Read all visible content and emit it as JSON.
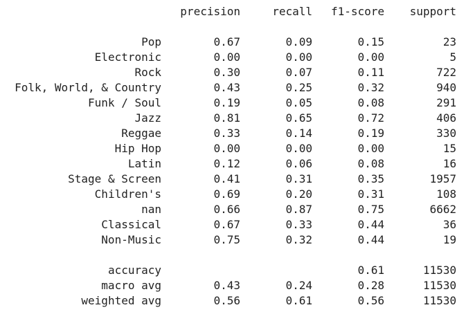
{
  "header": {
    "precision": "precision",
    "recall": "recall",
    "f1": "f1-score",
    "support": "support"
  },
  "classes": [
    {
      "label": "Pop",
      "precision": "0.67",
      "recall": "0.09",
      "f1": "0.15",
      "support": "23"
    },
    {
      "label": "Electronic",
      "precision": "0.00",
      "recall": "0.00",
      "f1": "0.00",
      "support": "5"
    },
    {
      "label": "Rock",
      "precision": "0.30",
      "recall": "0.07",
      "f1": "0.11",
      "support": "722"
    },
    {
      "label": "Folk, World, & Country",
      "precision": "0.43",
      "recall": "0.25",
      "f1": "0.32",
      "support": "940"
    },
    {
      "label": "Funk / Soul",
      "precision": "0.19",
      "recall": "0.05",
      "f1": "0.08",
      "support": "291"
    },
    {
      "label": "Jazz",
      "precision": "0.81",
      "recall": "0.65",
      "f1": "0.72",
      "support": "406"
    },
    {
      "label": "Reggae",
      "precision": "0.33",
      "recall": "0.14",
      "f1": "0.19",
      "support": "330"
    },
    {
      "label": "Hip Hop",
      "precision": "0.00",
      "recall": "0.00",
      "f1": "0.00",
      "support": "15"
    },
    {
      "label": "Latin",
      "precision": "0.12",
      "recall": "0.06",
      "f1": "0.08",
      "support": "16"
    },
    {
      "label": "Stage & Screen",
      "precision": "0.41",
      "recall": "0.31",
      "f1": "0.35",
      "support": "1957"
    },
    {
      "label": "Children's",
      "precision": "0.69",
      "recall": "0.20",
      "f1": "0.31",
      "support": "108"
    },
    {
      "label": "nan",
      "precision": "0.66",
      "recall": "0.87",
      "f1": "0.75",
      "support": "6662"
    },
    {
      "label": "Classical",
      "precision": "0.67",
      "recall": "0.33",
      "f1": "0.44",
      "support": "36"
    },
    {
      "label": "Non-Music",
      "precision": "0.75",
      "recall": "0.32",
      "f1": "0.44",
      "support": "19"
    }
  ],
  "summary": [
    {
      "label": "accuracy",
      "precision": "",
      "recall": "",
      "f1": "0.61",
      "support": "11530"
    },
    {
      "label": "macro avg",
      "precision": "0.43",
      "recall": "0.24",
      "f1": "0.28",
      "support": "11530"
    },
    {
      "label": "weighted avg",
      "precision": "0.56",
      "recall": "0.61",
      "f1": "0.56",
      "support": "11530"
    }
  ]
}
